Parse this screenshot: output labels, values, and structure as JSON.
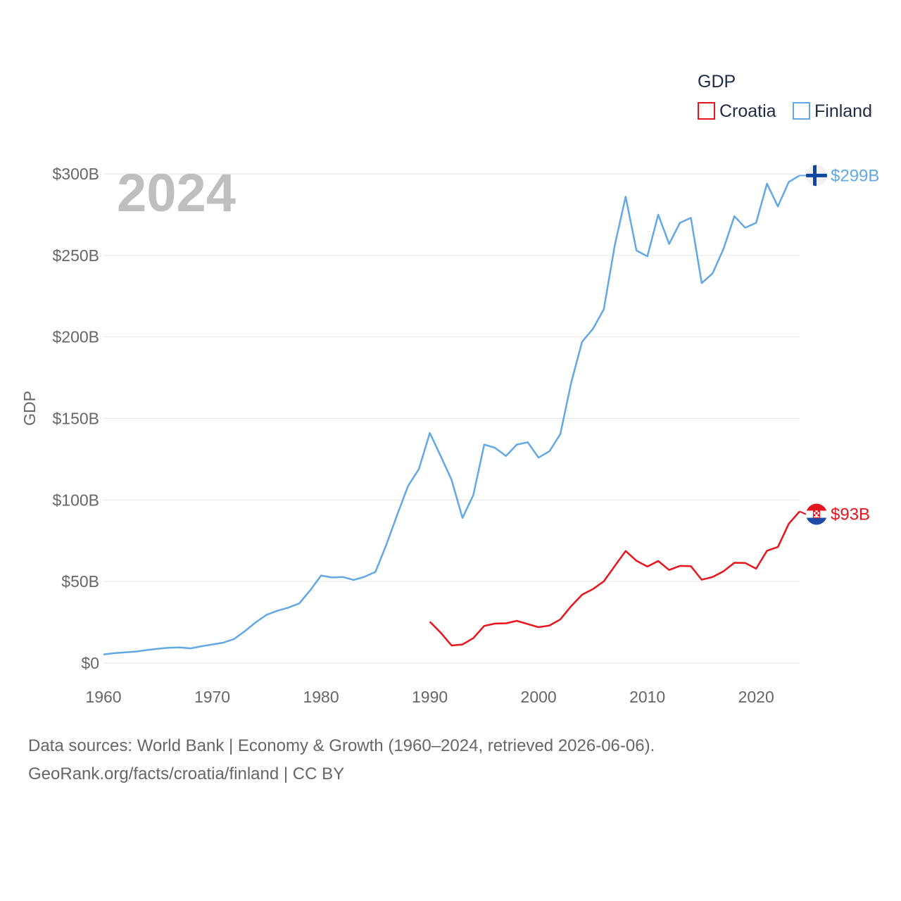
{
  "chart_data": {
    "type": "line",
    "title": "",
    "year_label": "2024",
    "ylabel": "GDP",
    "xlabel": "",
    "xlim": [
      1960,
      2024
    ],
    "ylim": [
      0,
      300
    ],
    "x_ticks": [
      1960,
      1970,
      1980,
      1990,
      2000,
      2010,
      2020
    ],
    "y_ticks": [
      {
        "value": 0,
        "label": "$0"
      },
      {
        "value": 50,
        "label": "$50B"
      },
      {
        "value": 100,
        "label": "$100B"
      },
      {
        "value": 150,
        "label": "$150B"
      },
      {
        "value": 200,
        "label": "$200B"
      },
      {
        "value": 250,
        "label": "$250B"
      },
      {
        "value": 300,
        "label": "$300B"
      }
    ],
    "legend": {
      "title": "GDP",
      "position": "top-right",
      "entries": [
        {
          "name": "Croatia",
          "color": "#e8141c"
        },
        {
          "name": "Finland",
          "color": "#62a8e5"
        }
      ]
    },
    "series": [
      {
        "name": "Finland",
        "color": "#62a8e5",
        "end_label": "$299B",
        "flag": "finland",
        "x": [
          1960,
          1961,
          1962,
          1963,
          1964,
          1965,
          1966,
          1967,
          1968,
          1969,
          1970,
          1971,
          1972,
          1973,
          1974,
          1975,
          1976,
          1977,
          1978,
          1979,
          1980,
          1981,
          1982,
          1983,
          1984,
          1985,
          1986,
          1987,
          1988,
          1989,
          1990,
          1991,
          1992,
          1993,
          1994,
          1995,
          1996,
          1997,
          1998,
          1999,
          2000,
          2001,
          2002,
          2003,
          2004,
          2005,
          2006,
          2007,
          2008,
          2009,
          2010,
          2011,
          2012,
          2013,
          2014,
          2015,
          2016,
          2017,
          2018,
          2019,
          2020,
          2021,
          2022,
          2023,
          2024
        ],
        "values": [
          5.3,
          6.1,
          6.6,
          7.1,
          8.0,
          8.8,
          9.4,
          9.6,
          9.0,
          10.3,
          11.4,
          12.5,
          14.7,
          19.6,
          25.0,
          29.6,
          32.1,
          34.0,
          36.6,
          44.6,
          53.7,
          52.5,
          52.8,
          51.0,
          52.9,
          55.9,
          72.5,
          90.8,
          108.6,
          119.0,
          141.1,
          127.0,
          112.4,
          89.0,
          103.0,
          134.0,
          132.0,
          127.0,
          134.0,
          135.4,
          126.0,
          129.9,
          140.4,
          172.0,
          197.0,
          205.0,
          217.0,
          256.0,
          286.0,
          253.0,
          249.4,
          275.0,
          257.0,
          270.0,
          273.0,
          233.0,
          239.0,
          254.0,
          274.0,
          267.0,
          270.0,
          294.0,
          280.0,
          295.0,
          299.0
        ]
      },
      {
        "name": "Croatia",
        "color": "#e8141c",
        "end_label": "$93B",
        "flag": "croatia",
        "x": [
          1990,
          1991,
          1992,
          1993,
          1994,
          1995,
          1996,
          1997,
          1998,
          1999,
          2000,
          2001,
          2002,
          2003,
          2004,
          2005,
          2006,
          2007,
          2008,
          2009,
          2010,
          2011,
          2012,
          2013,
          2014,
          2015,
          2016,
          2017,
          2018,
          2019,
          2020,
          2021,
          2022,
          2023,
          2024
        ],
        "values": [
          25.4,
          18.7,
          10.8,
          11.4,
          15.3,
          22.8,
          24.2,
          24.4,
          25.9,
          23.9,
          22.0,
          23.0,
          26.8,
          34.9,
          41.9,
          45.4,
          50.1,
          59.5,
          68.7,
          62.7,
          59.2,
          62.6,
          57.1,
          59.6,
          59.4,
          51.1,
          52.8,
          56.3,
          61.5,
          61.4,
          57.9,
          68.9,
          71.2,
          85.4,
          93.0
        ]
      }
    ]
  },
  "footer": {
    "line1": "Data sources: World Bank | Economy & Growth (1960–2024, retrieved 2026-06-06).",
    "line2": "GeoRank.org/facts/croatia/finland | CC BY"
  }
}
